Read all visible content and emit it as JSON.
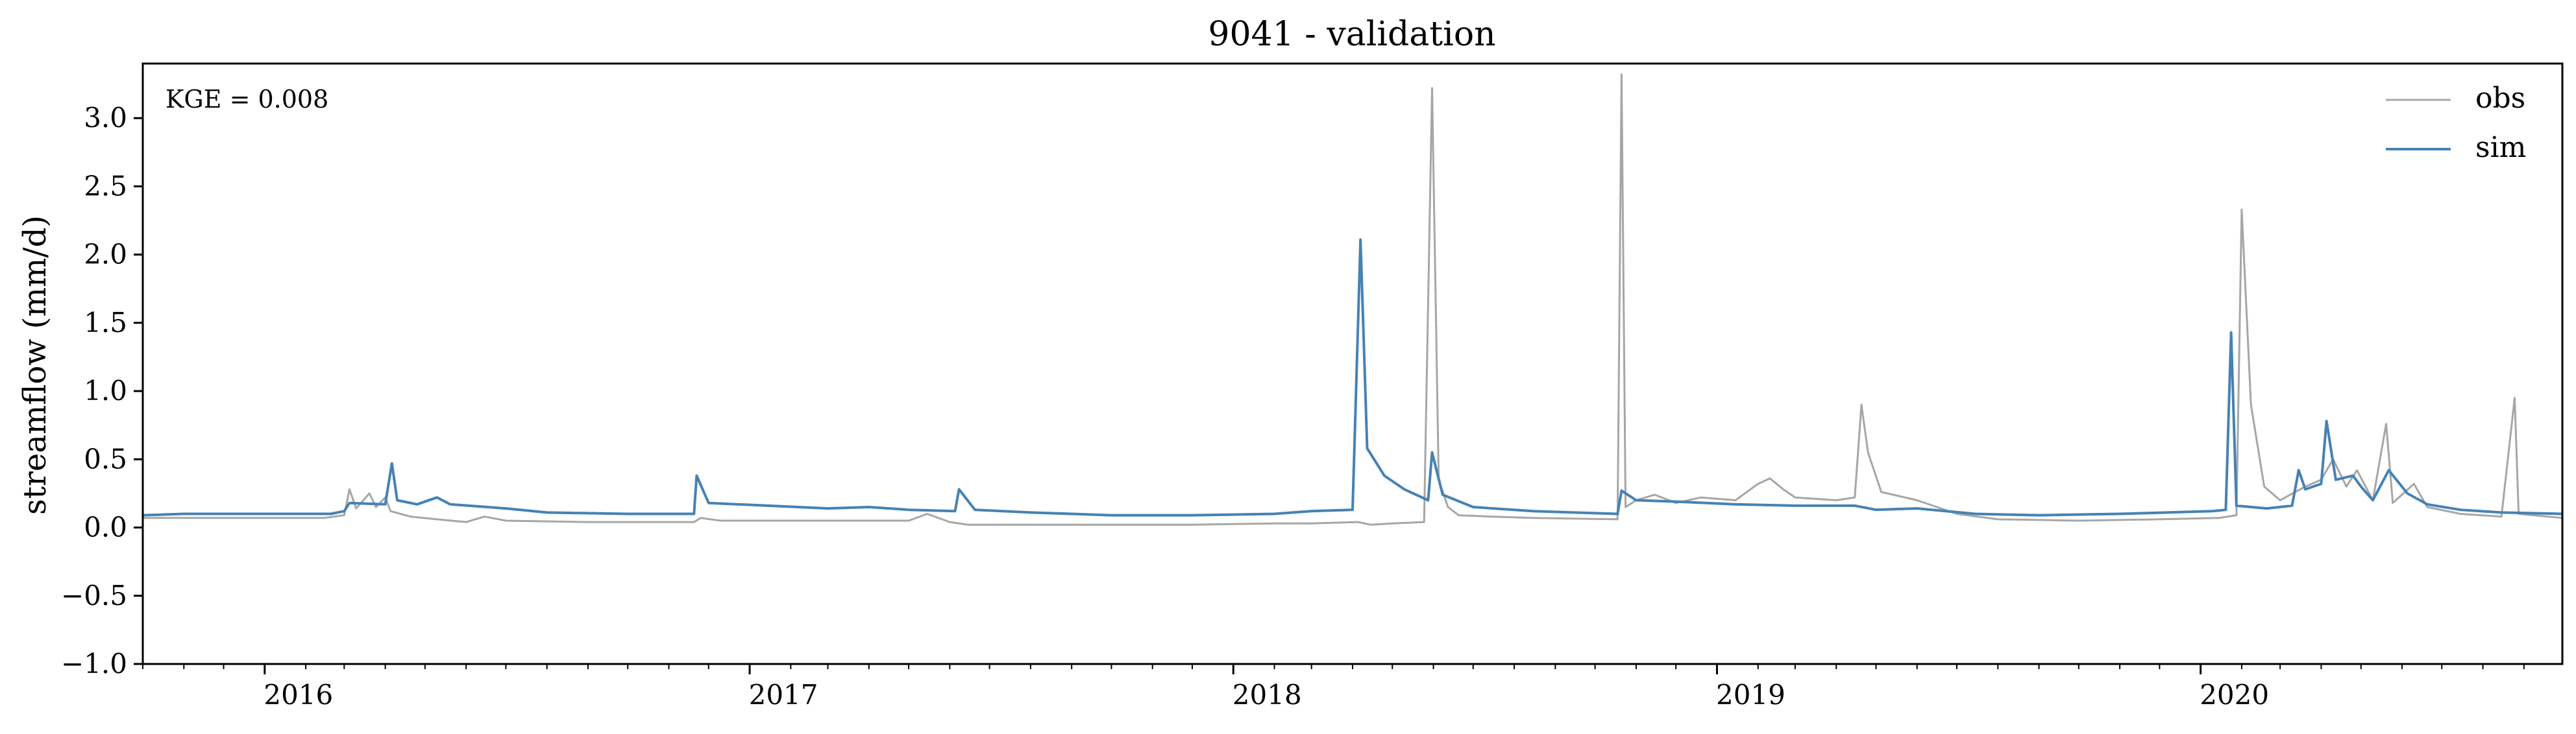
{
  "chart_data": {
    "type": "line",
    "title": "9041 - validation",
    "xlabel": "",
    "ylabel": "streamflow (mm/d)",
    "ylim": [
      -1.0,
      3.4
    ],
    "yticks": [
      -1.0,
      -0.5,
      0.0,
      0.5,
      1.0,
      1.5,
      2.0,
      2.5,
      3.0
    ],
    "ytick_labels": [
      "−1.0",
      "−0.5",
      "0.0",
      "0.5",
      "1.0",
      "1.5",
      "2.0",
      "2.5",
      "3.0"
    ],
    "xlim": [
      "2015-10-01",
      "2020-09-30"
    ],
    "xticks": [
      "2016-01-01",
      "2017-01-01",
      "2018-01-01",
      "2019-01-01",
      "2020-01-01"
    ],
    "xtick_labels": [
      "2016",
      "2017",
      "2018",
      "2019",
      "2020"
    ],
    "x_unit": "date",
    "grid": false,
    "legend_position": "top-right",
    "annotation": "KGE = 0.008",
    "series": [
      {
        "name": "obs",
        "color": "#a6a6a6",
        "points": [
          [
            "2015-10-01",
            0.07
          ],
          [
            "2015-11-15",
            0.07
          ],
          [
            "2015-12-31",
            0.07
          ],
          [
            "2016-02-15",
            0.07
          ],
          [
            "2016-03-01",
            0.09
          ],
          [
            "2016-03-05",
            0.28
          ],
          [
            "2016-03-10",
            0.14
          ],
          [
            "2016-03-20",
            0.25
          ],
          [
            "2016-03-25",
            0.15
          ],
          [
            "2016-04-01",
            0.22
          ],
          [
            "2016-04-05",
            0.12
          ],
          [
            "2016-04-20",
            0.08
          ],
          [
            "2016-05-10",
            0.06
          ],
          [
            "2016-06-01",
            0.04
          ],
          [
            "2016-06-15",
            0.08
          ],
          [
            "2016-07-01",
            0.05
          ],
          [
            "2016-09-01",
            0.04
          ],
          [
            "2016-11-01",
            0.04
          ],
          [
            "2016-11-20",
            0.04
          ],
          [
            "2016-11-25",
            0.07
          ],
          [
            "2016-12-10",
            0.05
          ],
          [
            "2017-03-01",
            0.05
          ],
          [
            "2017-05-01",
            0.05
          ],
          [
            "2017-05-15",
            0.1
          ],
          [
            "2017-06-01",
            0.04
          ],
          [
            "2017-06-15",
            0.02
          ],
          [
            "2017-09-01",
            0.02
          ],
          [
            "2017-12-01",
            0.02
          ],
          [
            "2018-02-01",
            0.03
          ],
          [
            "2018-03-01",
            0.03
          ],
          [
            "2018-04-05",
            0.04
          ],
          [
            "2018-04-15",
            0.02
          ],
          [
            "2018-05-01",
            0.03
          ],
          [
            "2018-05-25",
            0.04
          ],
          [
            "2018-05-31",
            3.22
          ],
          [
            "2018-06-05",
            0.35
          ],
          [
            "2018-06-12",
            0.15
          ],
          [
            "2018-06-20",
            0.09
          ],
          [
            "2018-07-15",
            0.08
          ],
          [
            "2018-08-15",
            0.07
          ],
          [
            "2018-10-18",
            0.06
          ],
          [
            "2018-10-21",
            3.32
          ],
          [
            "2018-10-24",
            0.15
          ],
          [
            "2018-11-01",
            0.2
          ],
          [
            "2018-11-15",
            0.24
          ],
          [
            "2018-12-01",
            0.18
          ],
          [
            "2018-12-20",
            0.22
          ],
          [
            "2019-01-15",
            0.2
          ],
          [
            "2019-02-01",
            0.32
          ],
          [
            "2019-02-10",
            0.36
          ],
          [
            "2019-02-20",
            0.28
          ],
          [
            "2019-03-01",
            0.22
          ],
          [
            "2019-04-01",
            0.2
          ],
          [
            "2019-04-15",
            0.22
          ],
          [
            "2019-04-20",
            0.9
          ],
          [
            "2019-04-25",
            0.55
          ],
          [
            "2019-05-05",
            0.26
          ],
          [
            "2019-06-01",
            0.2
          ],
          [
            "2019-07-01",
            0.1
          ],
          [
            "2019-08-01",
            0.06
          ],
          [
            "2019-10-01",
            0.05
          ],
          [
            "2019-12-01",
            0.06
          ],
          [
            "2020-01-15",
            0.07
          ],
          [
            "2020-01-28",
            0.09
          ],
          [
            "2020-02-01",
            2.33
          ],
          [
            "2020-02-08",
            0.9
          ],
          [
            "2020-02-18",
            0.3
          ],
          [
            "2020-03-01",
            0.2
          ],
          [
            "2020-03-20",
            0.3
          ],
          [
            "2020-04-01",
            0.35
          ],
          [
            "2020-04-10",
            0.5
          ],
          [
            "2020-04-20",
            0.3
          ],
          [
            "2020-04-28",
            0.42
          ],
          [
            "2020-05-10",
            0.2
          ],
          [
            "2020-05-20",
            0.76
          ],
          [
            "2020-05-25",
            0.18
          ],
          [
            "2020-06-10",
            0.32
          ],
          [
            "2020-06-20",
            0.15
          ],
          [
            "2020-07-15",
            0.1
          ],
          [
            "2020-08-15",
            0.08
          ],
          [
            "2020-08-25",
            0.95
          ],
          [
            "2020-08-28",
            0.1
          ],
          [
            "2020-09-30",
            0.07
          ]
        ]
      },
      {
        "name": "sim",
        "color": "#4682b4",
        "points": [
          [
            "2015-10-01",
            0.09
          ],
          [
            "2015-11-01",
            0.1
          ],
          [
            "2015-12-01",
            0.1
          ],
          [
            "2016-01-15",
            0.1
          ],
          [
            "2016-02-20",
            0.1
          ],
          [
            "2016-03-01",
            0.12
          ],
          [
            "2016-03-05",
            0.18
          ],
          [
            "2016-04-01",
            0.17
          ],
          [
            "2016-04-06",
            0.47
          ],
          [
            "2016-04-10",
            0.2
          ],
          [
            "2016-04-25",
            0.17
          ],
          [
            "2016-05-10",
            0.22
          ],
          [
            "2016-05-20",
            0.17
          ],
          [
            "2016-07-01",
            0.14
          ],
          [
            "2016-08-01",
            0.11
          ],
          [
            "2016-10-01",
            0.1
          ],
          [
            "2016-11-20",
            0.1
          ],
          [
            "2016-11-22",
            0.38
          ],
          [
            "2016-12-01",
            0.18
          ],
          [
            "2017-01-15",
            0.16
          ],
          [
            "2017-03-01",
            0.14
          ],
          [
            "2017-04-01",
            0.15
          ],
          [
            "2017-05-01",
            0.13
          ],
          [
            "2017-06-05",
            0.12
          ],
          [
            "2017-06-08",
            0.28
          ],
          [
            "2017-06-20",
            0.13
          ],
          [
            "2017-08-01",
            0.11
          ],
          [
            "2017-10-01",
            0.09
          ],
          [
            "2017-12-01",
            0.09
          ],
          [
            "2018-02-01",
            0.1
          ],
          [
            "2018-03-01",
            0.12
          ],
          [
            "2018-04-01",
            0.13
          ],
          [
            "2018-04-07",
            2.11
          ],
          [
            "2018-04-12",
            0.58
          ],
          [
            "2018-04-25",
            0.38
          ],
          [
            "2018-05-10",
            0.28
          ],
          [
            "2018-05-28",
            0.2
          ],
          [
            "2018-05-31",
            0.55
          ],
          [
            "2018-06-08",
            0.24
          ],
          [
            "2018-07-01",
            0.15
          ],
          [
            "2018-08-15",
            0.12
          ],
          [
            "2018-10-18",
            0.1
          ],
          [
            "2018-10-21",
            0.27
          ],
          [
            "2018-11-01",
            0.2
          ],
          [
            "2018-12-01",
            0.19
          ],
          [
            "2019-01-15",
            0.17
          ],
          [
            "2019-03-01",
            0.16
          ],
          [
            "2019-04-15",
            0.16
          ],
          [
            "2019-05-01",
            0.13
          ],
          [
            "2019-06-01",
            0.14
          ],
          [
            "2019-07-15",
            0.1
          ],
          [
            "2019-09-01",
            0.09
          ],
          [
            "2019-11-01",
            0.1
          ],
          [
            "2020-01-10",
            0.12
          ],
          [
            "2020-01-20",
            0.13
          ],
          [
            "2020-01-24",
            1.43
          ],
          [
            "2020-01-28",
            0.16
          ],
          [
            "2020-02-20",
            0.14
          ],
          [
            "2020-03-10",
            0.16
          ],
          [
            "2020-03-15",
            0.42
          ],
          [
            "2020-03-20",
            0.28
          ],
          [
            "2020-04-01",
            0.32
          ],
          [
            "2020-04-05",
            0.78
          ],
          [
            "2020-04-12",
            0.35
          ],
          [
            "2020-04-25",
            0.38
          ],
          [
            "2020-05-01",
            0.3
          ],
          [
            "2020-05-10",
            0.2
          ],
          [
            "2020-05-22",
            0.42
          ],
          [
            "2020-06-05",
            0.25
          ],
          [
            "2020-06-20",
            0.17
          ],
          [
            "2020-07-15",
            0.13
          ],
          [
            "2020-08-15",
            0.11
          ],
          [
            "2020-09-30",
            0.1
          ]
        ]
      }
    ]
  }
}
